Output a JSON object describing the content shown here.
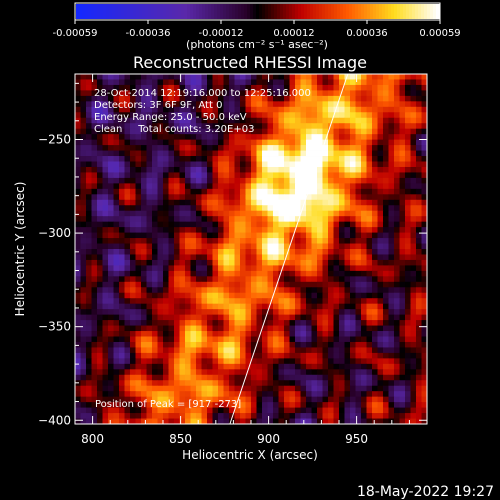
{
  "chart_data": {
    "type": "heatmap",
    "title": "Reconstructed RHESSI Image",
    "xlabel": "Heliocentric X (arcsec)",
    "ylabel": "Heliocentric Y (arcsec)",
    "xlim": [
      790,
      990
    ],
    "ylim": [
      -402,
      -215
    ],
    "x_ticks": [
      800,
      850,
      900,
      950
    ],
    "y_ticks": [
      -400,
      -350,
      -300,
      -250
    ],
    "colorbar": {
      "colormap": "rhessi-blue-black-red-yellow-white",
      "range": [
        -0.00059,
        0.00059
      ],
      "ticks": [
        "-0.00059",
        "-0.00036",
        "-0.00012",
        "0.00012",
        "0.00036",
        "0.00059"
      ],
      "unit_label": "(photons cm⁻² s⁻¹ asec⁻²)"
    },
    "annotations": [
      "28-Oct-2014 12:19:16.000 to 12:25:16.000",
      "Detectors: 3F 6F 9F, Att 0",
      "Energy Range: 25.0 - 50.0 keV",
      "Clean     Total counts: 3.20E+03"
    ],
    "peak_label": "Position of Peak = [917 -273]",
    "peak": [
      917,
      -273
    ],
    "limb_line": {
      "from": [
        878,
        -402
      ],
      "to": [
        945,
        -215
      ]
    },
    "timestamp": "18-May-2022 19:27"
  }
}
